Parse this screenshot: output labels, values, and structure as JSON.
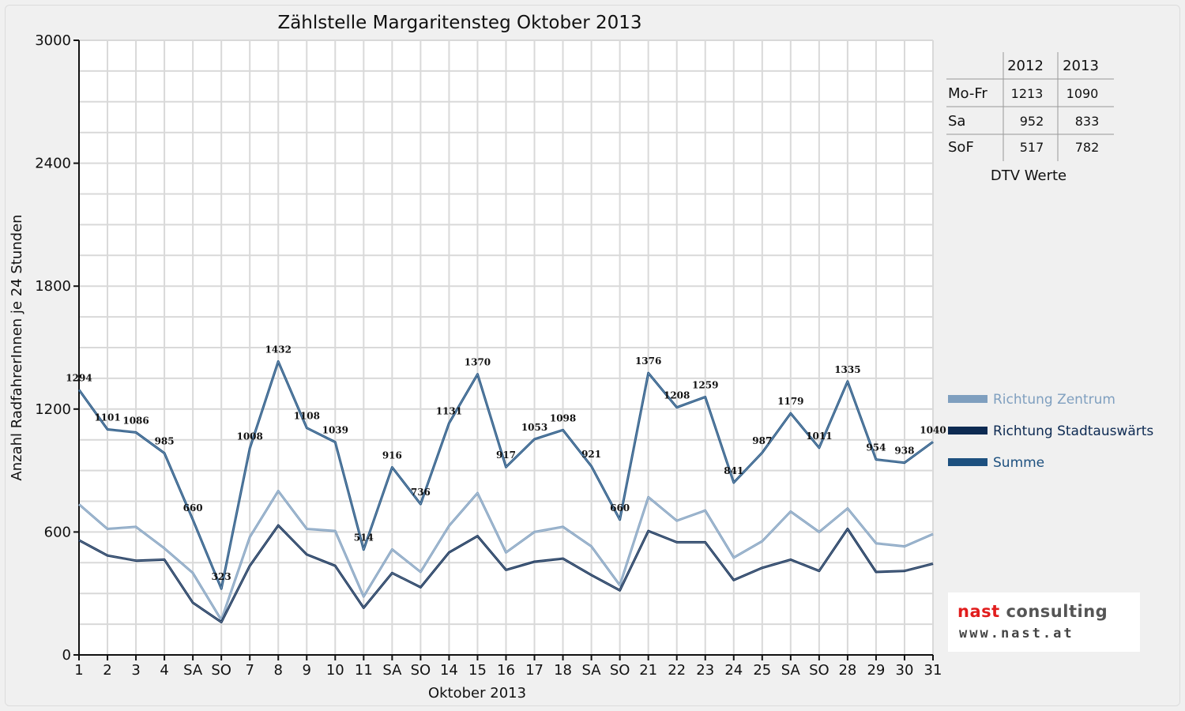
{
  "colors": {
    "zentrum": "#7f9fbf",
    "stadtauswaerts": "#0d2a52",
    "summe": "#1d507f",
    "sunday": "#e00000",
    "grid": "#d9d9d9"
  },
  "chart_data": {
    "type": "line",
    "title": "Zählstelle Margaritensteg Oktober 2013",
    "xlabel": "Oktober 2013",
    "ylabel": "Anzahl RadfahrerInnen je 24 Stunden",
    "ylim": [
      0,
      3000
    ],
    "yticks": [
      "0",
      "600",
      "1200",
      "1800",
      "2400",
      "3000"
    ],
    "grid": true,
    "legend_position": "right",
    "categories": [
      "1",
      "2",
      "3",
      "4",
      "SA",
      "SO",
      "7",
      "8",
      "9",
      "10",
      "11",
      "SA",
      "SO",
      "14",
      "15",
      "16",
      "17",
      "18",
      "SA",
      "SO",
      "21",
      "22",
      "23",
      "24",
      "25",
      "SA",
      "SO",
      "28",
      "29",
      "30",
      "31"
    ],
    "sunday_flags": [
      false,
      false,
      false,
      false,
      false,
      true,
      false,
      false,
      false,
      false,
      false,
      false,
      true,
      false,
      false,
      false,
      false,
      false,
      false,
      true,
      false,
      false,
      false,
      false,
      false,
      false,
      true,
      false,
      false,
      false,
      false
    ],
    "series": [
      {
        "name": "Richtung Zentrum",
        "values": [
          735,
          615,
          625,
          520,
          400,
          170,
          575,
          800,
          615,
          605,
          285,
          515,
          405,
          630,
          790,
          500,
          600,
          625,
          530,
          340,
          770,
          655,
          705,
          475,
          555,
          700,
          600,
          715,
          545,
          530,
          590
        ]
      },
      {
        "name": "Richtung Stadtauswärts",
        "values": [
          560,
          485,
          460,
          465,
          255,
          160,
          435,
          632,
          490,
          435,
          230,
          400,
          330,
          500,
          580,
          415,
          455,
          470,
          390,
          315,
          605,
          550,
          550,
          365,
          425,
          465,
          410,
          615,
          405,
          410,
          445
        ]
      },
      {
        "name": "Summe",
        "values": [
          1294,
          1101,
          1086,
          985,
          660,
          323,
          1008,
          1432,
          1108,
          1039,
          514,
          916,
          736,
          1131,
          1370,
          917,
          1053,
          1098,
          921,
          660,
          1376,
          1208,
          1259,
          841,
          987,
          1179,
          1011,
          1335,
          954,
          938,
          1040
        ]
      }
    ],
    "data_labels": [
      "1294",
      "1101",
      "1086",
      "985",
      "660",
      "323",
      "1008",
      "1432",
      "1108",
      "1039",
      "514",
      "916",
      "736",
      "1131",
      "1370",
      "917",
      "1053",
      "1098",
      "921",
      "660",
      "1376",
      "1208",
      "1259",
      "841",
      "987",
      "1179",
      "1011",
      "1335",
      "954",
      "938",
      "1040"
    ]
  },
  "dtv_table": {
    "caption": "DTV Werte",
    "headers": [
      "2012",
      "2013"
    ],
    "rows": [
      {
        "label": "Mo-Fr",
        "v2012": "1213",
        "v2013": "1090"
      },
      {
        "label": "Sa",
        "v2012": "952",
        "v2013": "833"
      },
      {
        "label": "SoF",
        "v2012": "517",
        "v2013": "782"
      }
    ]
  },
  "logo": {
    "word1": "nast",
    "word2": " consulting",
    "url": "www.nast.at"
  }
}
